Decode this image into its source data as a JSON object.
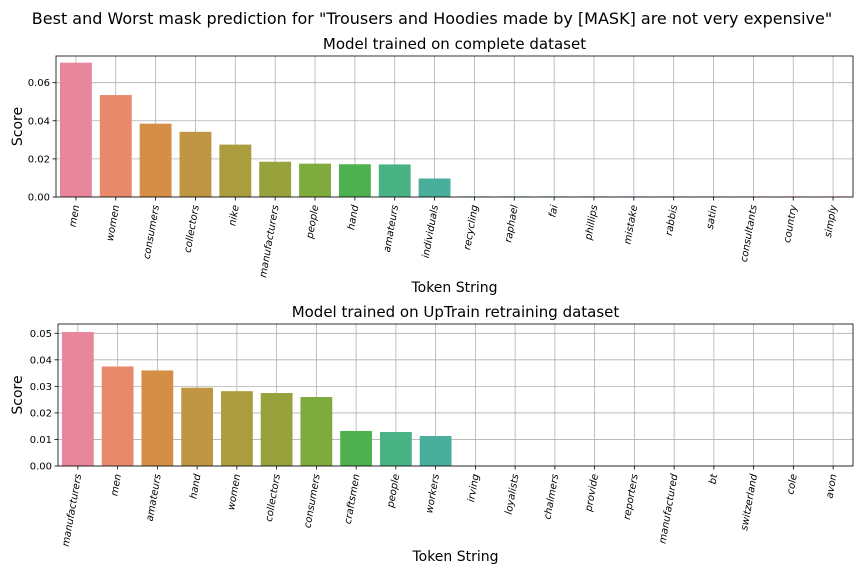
{
  "figure_title": "Best and Worst mask prediction for \"Trousers and Hoodies made by [MASK] are not very expensive\"",
  "palette": [
    "#e8879c",
    "#e8896c",
    "#d58e45",
    "#c09644",
    "#ab9c3d",
    "#98a23c",
    "#7faa3e",
    "#4eb04e",
    "#49b386",
    "#4aae9d",
    "#4cab9f",
    "#4ea9ab",
    "#4ea7b5",
    "#56a1cc",
    "#6a96e0",
    "#9a84e4",
    "#bc77e2",
    "#dc6fd2",
    "#e874bc",
    "#e97aa6"
  ],
  "chart_data": [
    {
      "type": "bar",
      "title": "Model trained on complete dataset",
      "xlabel": "Token String",
      "ylabel": "Score",
      "ylim": [
        0,
        0.074
      ],
      "yticks": [
        0.0,
        0.02,
        0.04,
        0.06
      ],
      "ytick_labels": [
        "0.00",
        "0.02",
        "0.04",
        "0.06"
      ],
      "grid": true,
      "categories": [
        "men",
        "women",
        "consumers",
        "collectors",
        "nike",
        "manufacturers",
        "people",
        "hand",
        "amateurs",
        "individuals",
        "recycling",
        "raphael",
        "fai",
        "phillips",
        "mistake",
        "rabbis",
        "satin",
        "consultants",
        "country",
        "simply"
      ],
      "values": [
        0.0705,
        0.0535,
        0.0385,
        0.0342,
        0.0275,
        0.0185,
        0.0175,
        0.0172,
        0.0171,
        0.0097,
        0.0003,
        0.0003,
        0.0003,
        0.0003,
        0.0003,
        0.0003,
        0.0003,
        0.0003,
        0.0003,
        0.0003
      ]
    },
    {
      "type": "bar",
      "title": "Model trained on UpTrain retraining dataset",
      "xlabel": "Token String",
      "ylabel": "Score",
      "ylim": [
        0,
        0.0535
      ],
      "yticks": [
        0.0,
        0.01,
        0.02,
        0.03,
        0.04,
        0.05
      ],
      "ytick_labels": [
        "0.00",
        "0.01",
        "0.02",
        "0.03",
        "0.04",
        "0.05"
      ],
      "grid": true,
      "categories": [
        "manufacturers",
        "men",
        "amateurs",
        "hand",
        "women",
        "collectors",
        "consumers",
        "craftsmen",
        "people",
        "workers",
        "irving",
        "loyalists",
        "chalmers",
        "provide",
        "reporters",
        "manufactured",
        "bt",
        "switzerland",
        "cole",
        "avon"
      ],
      "values": [
        0.0505,
        0.0375,
        0.036,
        0.0295,
        0.0282,
        0.0275,
        0.026,
        0.0132,
        0.0128,
        0.0113,
        1e-05,
        1e-05,
        1e-05,
        1e-05,
        1e-05,
        1e-05,
        1e-05,
        1e-05,
        1e-05,
        1e-05
      ]
    }
  ]
}
